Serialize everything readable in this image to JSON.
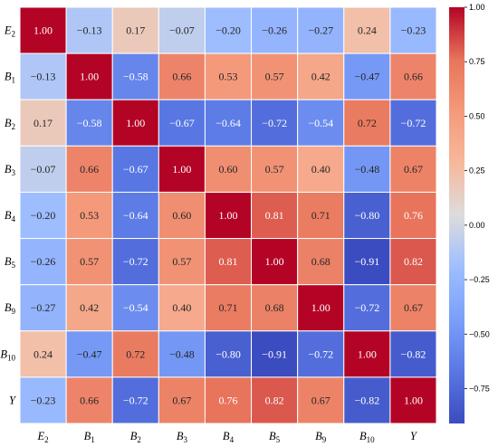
{
  "chart_data": {
    "type": "heatmap",
    "rows": [
      "E2",
      "B1",
      "B2",
      "B3",
      "B4",
      "B5",
      "B9",
      "B10",
      "Y"
    ],
    "cols": [
      "E2",
      "B1",
      "B2",
      "B3",
      "B4",
      "B5",
      "B9",
      "B10",
      "Y"
    ],
    "row_labels": [
      {
        "base": "E",
        "sub": "2"
      },
      {
        "base": "B",
        "sub": "1"
      },
      {
        "base": "B",
        "sub": "2"
      },
      {
        "base": "B",
        "sub": "3"
      },
      {
        "base": "B",
        "sub": "4"
      },
      {
        "base": "B",
        "sub": "5"
      },
      {
        "base": "B",
        "sub": "9"
      },
      {
        "base": "B",
        "sub": "10"
      },
      {
        "base": "Y",
        "sub": ""
      }
    ],
    "values": [
      [
        1.0,
        -0.13,
        0.17,
        -0.07,
        -0.2,
        -0.26,
        -0.27,
        0.24,
        -0.23
      ],
      [
        -0.13,
        1.0,
        -0.58,
        0.66,
        0.53,
        0.57,
        0.42,
        -0.47,
        0.66
      ],
      [
        0.17,
        -0.58,
        1.0,
        -0.67,
        -0.64,
        -0.72,
        -0.54,
        0.72,
        -0.72
      ],
      [
        -0.07,
        0.66,
        -0.67,
        1.0,
        0.6,
        0.57,
        0.4,
        -0.48,
        0.67
      ],
      [
        -0.2,
        0.53,
        -0.64,
        0.6,
        1.0,
        0.81,
        0.71,
        -0.8,
        0.76
      ],
      [
        -0.26,
        0.57,
        -0.72,
        0.57,
        0.81,
        1.0,
        0.68,
        -0.91,
        0.82
      ],
      [
        -0.27,
        0.42,
        -0.54,
        0.4,
        0.71,
        0.68,
        1.0,
        -0.72,
        0.67
      ],
      [
        0.24,
        -0.47,
        0.72,
        -0.48,
        -0.8,
        -0.91,
        -0.72,
        1.0,
        -0.82
      ],
      [
        -0.23,
        0.66,
        -0.72,
        0.67,
        0.76,
        0.82,
        0.67,
        -0.82,
        1.0
      ]
    ],
    "colormap": "coolwarm",
    "colorbar_ticks": [
      "1.00",
      "0.75",
      "0.50",
      "0.25",
      "0.00",
      "−0.25",
      "−0.50",
      "−0.75"
    ],
    "colorbar_range": [
      -0.91,
      1.0
    ]
  }
}
